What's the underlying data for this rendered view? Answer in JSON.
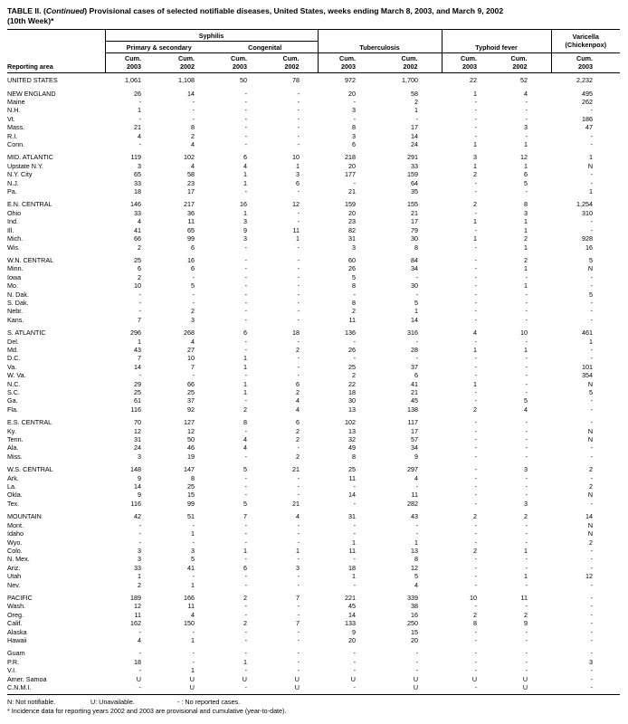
{
  "title": {
    "part1": "TABLE II. (",
    "part2_italic": "Continued",
    "part3": ") Provisional cases of selected notifiable diseases, United States, weeks ending March 8, 2003, and March 9, 2002",
    "line2": "(10th Week)*"
  },
  "table": {
    "reporting_area_label": "Reporting area",
    "group_headers": {
      "syphilis": "Syphilis",
      "primary_secondary": "Primary & secondary",
      "congenital": "Congenital",
      "tuberculosis": "Tuberculosis",
      "typhoid_fever": "Typhoid fever",
      "varicella_line1": "Varicella",
      "varicella_line2": "(Chickenpox)"
    },
    "cum_label": "Cum.",
    "years": [
      "2003",
      "2002",
      "2003",
      "2002",
      "2003",
      "2002",
      "2003",
      "2002",
      "2003"
    ],
    "groups": [
      {
        "rows": [
          {
            "area": "UNITED STATES",
            "values": [
              "1,061",
              "1,108",
              "50",
              "78",
              "972",
              "1,700",
              "22",
              "52",
              "2,232"
            ]
          }
        ]
      },
      {
        "rows": [
          {
            "area": "NEW ENGLAND",
            "values": [
              "26",
              "14",
              "-",
              "-",
              "20",
              "58",
              "1",
              "4",
              "495"
            ]
          },
          {
            "area": "Maine",
            "values": [
              "-",
              "-",
              "-",
              "-",
              "-",
              "2",
              "-",
              "-",
              "262"
            ]
          },
          {
            "area": "N.H.",
            "values": [
              "1",
              "-",
              "-",
              "-",
              "3",
              "1",
              "-",
              "-",
              "-"
            ]
          },
          {
            "area": "Vt.",
            "values": [
              "-",
              "-",
              "-",
              "-",
              "-",
              "-",
              "-",
              "-",
              "186"
            ]
          },
          {
            "area": "Mass.",
            "values": [
              "21",
              "8",
              "-",
              "-",
              "8",
              "17",
              "-",
              "3",
              "47"
            ]
          },
          {
            "area": "R.I.",
            "values": [
              "4",
              "2",
              "-",
              "-",
              "3",
              "14",
              "-",
              "-",
              "-"
            ]
          },
          {
            "area": "Conn.",
            "values": [
              "-",
              "4",
              "-",
              "-",
              "6",
              "24",
              "1",
              "1",
              "-"
            ]
          }
        ]
      },
      {
        "rows": [
          {
            "area": "MID. ATLANTIC",
            "values": [
              "119",
              "102",
              "6",
              "10",
              "218",
              "291",
              "3",
              "12",
              "1"
            ]
          },
          {
            "area": "Upstate N.Y.",
            "values": [
              "3",
              "4",
              "4",
              "1",
              "20",
              "33",
              "1",
              "1",
              "N"
            ]
          },
          {
            "area": "N.Y. City",
            "values": [
              "65",
              "58",
              "1",
              "3",
              "177",
              "159",
              "2",
              "6",
              "-"
            ]
          },
          {
            "area": "N.J.",
            "values": [
              "33",
              "23",
              "1",
              "6",
              "-",
              "64",
              "-",
              "5",
              "-"
            ]
          },
          {
            "area": "Pa.",
            "values": [
              "18",
              "17",
              "-",
              "-",
              "21",
              "35",
              "-",
              "-",
              "1"
            ]
          }
        ]
      },
      {
        "rows": [
          {
            "area": "E.N. CENTRAL",
            "values": [
              "146",
              "217",
              "16",
              "12",
              "159",
              "155",
              "2",
              "8",
              "1,254"
            ]
          },
          {
            "area": "Ohio",
            "values": [
              "33",
              "36",
              "1",
              "-",
              "20",
              "21",
              "-",
              "3",
              "310"
            ]
          },
          {
            "area": "Ind.",
            "values": [
              "4",
              "11",
              "3",
              "-",
              "23",
              "17",
              "1",
              "1",
              "-"
            ]
          },
          {
            "area": "Ill.",
            "values": [
              "41",
              "65",
              "9",
              "11",
              "82",
              "79",
              "-",
              "1",
              "-"
            ]
          },
          {
            "area": "Mich.",
            "values": [
              "66",
              "99",
              "3",
              "1",
              "31",
              "30",
              "1",
              "2",
              "928"
            ]
          },
          {
            "area": "Wis.",
            "values": [
              "2",
              "6",
              "-",
              "-",
              "3",
              "8",
              "-",
              "1",
              "16"
            ]
          }
        ]
      },
      {
        "rows": [
          {
            "area": "W.N. CENTRAL",
            "values": [
              "25",
              "16",
              "-",
              "-",
              "60",
              "84",
              "-",
              "2",
              "5"
            ]
          },
          {
            "area": "Minn.",
            "values": [
              "6",
              "6",
              "-",
              "-",
              "26",
              "34",
              "-",
              "1",
              "N"
            ]
          },
          {
            "area": "Iowa",
            "values": [
              "2",
              "-",
              "-",
              "-",
              "5",
              "-",
              "-",
              "-",
              "-"
            ]
          },
          {
            "area": "Mo.",
            "values": [
              "10",
              "5",
              "-",
              "-",
              "8",
              "30",
              "-",
              "1",
              "-"
            ]
          },
          {
            "area": "N. Dak.",
            "values": [
              "-",
              "-",
              "-",
              "-",
              "-",
              "-",
              "-",
              "-",
              "5"
            ]
          },
          {
            "area": "S. Dak.",
            "values": [
              "-",
              "-",
              "-",
              "-",
              "8",
              "5",
              "-",
              "-",
              "-"
            ]
          },
          {
            "area": "Nebr.",
            "values": [
              "-",
              "2",
              "-",
              "-",
              "2",
              "1",
              "-",
              "-",
              "-"
            ]
          },
          {
            "area": "Kans.",
            "values": [
              "7",
              "3",
              "-",
              "-",
              "11",
              "14",
              "-",
              "-",
              "-"
            ]
          }
        ]
      },
      {
        "rows": [
          {
            "area": "S. ATLANTIC",
            "values": [
              "296",
              "268",
              "6",
              "18",
              "136",
              "316",
              "4",
              "10",
              "461"
            ]
          },
          {
            "area": "Del.",
            "values": [
              "1",
              "4",
              "-",
              "-",
              "-",
              "-",
              "-",
              "-",
              "1"
            ]
          },
          {
            "area": "Md.",
            "values": [
              "43",
              "27",
              "-",
              "2",
              "26",
              "28",
              "1",
              "1",
              "-"
            ]
          },
          {
            "area": "D.C.",
            "values": [
              "7",
              "10",
              "1",
              "-",
              "-",
              "-",
              "-",
              "-",
              "-"
            ]
          },
          {
            "area": "Va.",
            "values": [
              "14",
              "7",
              "1",
              "-",
              "25",
              "37",
              "-",
              "-",
              "101"
            ]
          },
          {
            "area": "W. Va.",
            "values": [
              "-",
              "-",
              "-",
              "-",
              "2",
              "6",
              "-",
              "-",
              "354"
            ]
          },
          {
            "area": "N.C.",
            "values": [
              "29",
              "66",
              "1",
              "6",
              "22",
              "41",
              "1",
              "-",
              "N"
            ]
          },
          {
            "area": "S.C.",
            "values": [
              "25",
              "25",
              "1",
              "2",
              "18",
              "21",
              "-",
              "-",
              "5"
            ]
          },
          {
            "area": "Ga.",
            "values": [
              "61",
              "37",
              "-",
              "4",
              "30",
              "45",
              "-",
              "5",
              "-"
            ]
          },
          {
            "area": "Fla.",
            "values": [
              "116",
              "92",
              "2",
              "4",
              "13",
              "138",
              "2",
              "4",
              "-"
            ]
          }
        ]
      },
      {
        "rows": [
          {
            "area": "E.S. CENTRAL",
            "values": [
              "70",
              "127",
              "8",
              "6",
              "102",
              "117",
              "-",
              "-",
              "-"
            ]
          },
          {
            "area": "Ky.",
            "values": [
              "12",
              "12",
              "-",
              "2",
              "13",
              "17",
              "-",
              "-",
              "N"
            ]
          },
          {
            "area": "Tenn.",
            "values": [
              "31",
              "50",
              "4",
              "2",
              "32",
              "57",
              "-",
              "-",
              "N"
            ]
          },
          {
            "area": "Ala.",
            "values": [
              "24",
              "46",
              "4",
              "-",
              "49",
              "34",
              "-",
              "-",
              "-"
            ]
          },
          {
            "area": "Miss.",
            "values": [
              "3",
              "19",
              "-",
              "2",
              "8",
              "9",
              "-",
              "-",
              "-"
            ]
          }
        ]
      },
      {
        "rows": [
          {
            "area": "W.S. CENTRAL",
            "values": [
              "148",
              "147",
              "5",
              "21",
              "25",
              "297",
              "-",
              "3",
              "2"
            ]
          },
          {
            "area": "Ark.",
            "values": [
              "9",
              "8",
              "-",
              "-",
              "11",
              "4",
              "-",
              "-",
              "-"
            ]
          },
          {
            "area": "La.",
            "values": [
              "14",
              "25",
              "-",
              "-",
              "-",
              "-",
              "-",
              "-",
              "2"
            ]
          },
          {
            "area": "Okla.",
            "values": [
              "9",
              "15",
              "-",
              "-",
              "14",
              "11",
              "-",
              "-",
              "N"
            ]
          },
          {
            "area": "Tex.",
            "values": [
              "116",
              "99",
              "5",
              "21",
              "-",
              "282",
              "-",
              "3",
              "-"
            ]
          }
        ]
      },
      {
        "rows": [
          {
            "area": "MOUNTAIN",
            "values": [
              "42",
              "51",
              "7",
              "4",
              "31",
              "43",
              "2",
              "2",
              "14"
            ]
          },
          {
            "area": "Mont.",
            "values": [
              "-",
              "-",
              "-",
              "-",
              "-",
              "-",
              "-",
              "-",
              "N"
            ]
          },
          {
            "area": "Idaho",
            "values": [
              "-",
              "1",
              "-",
              "-",
              "-",
              "-",
              "-",
              "-",
              "N"
            ]
          },
          {
            "area": "Wyo.",
            "values": [
              "-",
              "-",
              "-",
              "-",
              "1",
              "1",
              "-",
              "-",
              "2"
            ]
          },
          {
            "area": "Colo.",
            "values": [
              "3",
              "3",
              "1",
              "1",
              "11",
              "13",
              "2",
              "1",
              "-"
            ]
          },
          {
            "area": "N. Mex.",
            "values": [
              "3",
              "5",
              "-",
              "-",
              "-",
              "8",
              "-",
              "-",
              "-"
            ]
          },
          {
            "area": "Ariz.",
            "values": [
              "33",
              "41",
              "6",
              "3",
              "18",
              "12",
              "-",
              "-",
              "-"
            ]
          },
          {
            "area": "Utah",
            "values": [
              "1",
              "-",
              "-",
              "-",
              "1",
              "5",
              "-",
              "1",
              "12"
            ]
          },
          {
            "area": "Nev.",
            "values": [
              "2",
              "1",
              "-",
              "-",
              "-",
              "4",
              "-",
              "-",
              "-"
            ]
          }
        ]
      },
      {
        "rows": [
          {
            "area": "PACIFIC",
            "values": [
              "189",
              "166",
              "2",
              "7",
              "221",
              "339",
              "10",
              "11",
              "-"
            ]
          },
          {
            "area": "Wash.",
            "values": [
              "12",
              "11",
              "-",
              "-",
              "45",
              "38",
              "-",
              "-",
              "-"
            ]
          },
          {
            "area": "Oreg.",
            "values": [
              "11",
              "4",
              "-",
              "-",
              "14",
              "16",
              "2",
              "2",
              "-"
            ]
          },
          {
            "area": "Calif.",
            "values": [
              "162",
              "150",
              "2",
              "7",
              "133",
              "250",
              "8",
              "9",
              "-"
            ]
          },
          {
            "area": "Alaska",
            "values": [
              "-",
              "-",
              "-",
              "-",
              "9",
              "15",
              "-",
              "-",
              "-"
            ]
          },
          {
            "area": "Hawaii",
            "values": [
              "4",
              "1",
              "-",
              "-",
              "20",
              "20",
              "-",
              "-",
              "-"
            ]
          }
        ]
      },
      {
        "rows": [
          {
            "area": "Guam",
            "values": [
              "-",
              "-",
              "-",
              "-",
              "-",
              "-",
              "-",
              "-",
              "-"
            ]
          },
          {
            "area": "P.R.",
            "values": [
              "18",
              "-",
              "1",
              "-",
              "-",
              "-",
              "-",
              "-",
              "3"
            ]
          },
          {
            "area": "V.I.",
            "values": [
              "-",
              "1",
              "-",
              "-",
              "-",
              "-",
              "-",
              "-",
              "-"
            ]
          },
          {
            "area": "Amer. Samoa",
            "values": [
              "U",
              "U",
              "U",
              "U",
              "U",
              "U",
              "U",
              "U",
              "-"
            ]
          },
          {
            "area": "C.N.M.I.",
            "values": [
              "-",
              "U",
              "-",
              "U",
              "-",
              "U",
              "-",
              "U",
              "-"
            ]
          }
        ]
      }
    ]
  },
  "footnotes": {
    "seg1": "N: Not notifiable.",
    "seg2": "U: Unavailable.",
    "seg3": "- : No reported cases.",
    "line2": "* Incidence data for reporting years 2002 and 2003 are provisional and cumulative (year-to-date)."
  }
}
